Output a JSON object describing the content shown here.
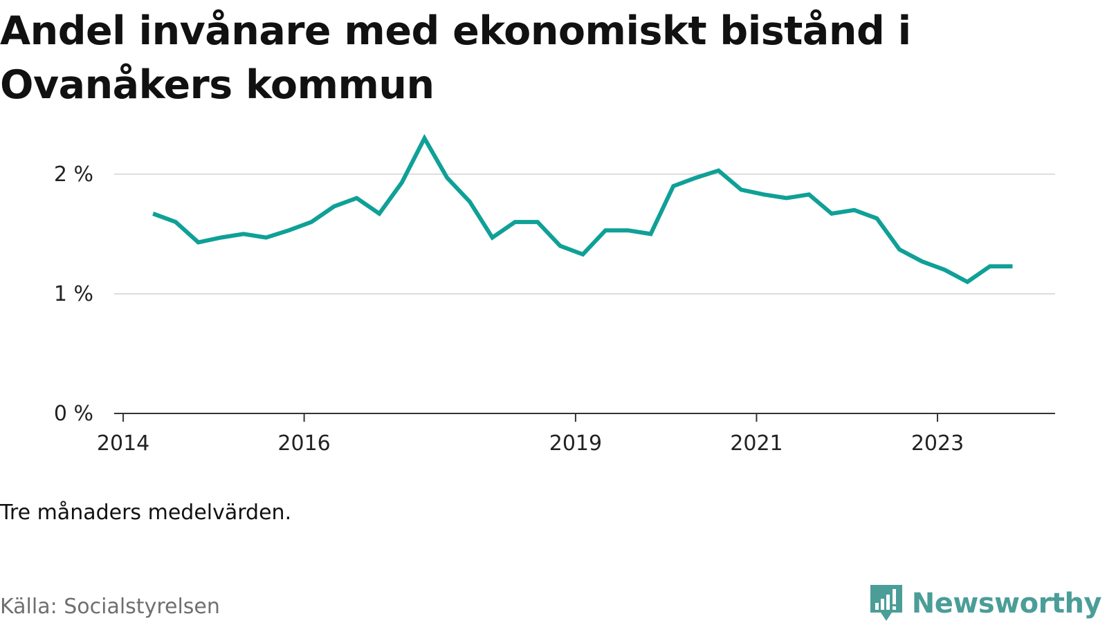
{
  "title": "Andel invånare med ekonomiskt bistånd i Ovanåkers kommun",
  "note": "Tre månaders medelvärden.",
  "source": "Källa: Socialstyrelsen",
  "brand": {
    "name": "Newsworthy",
    "color": "#4b9d98",
    "logo_icon": "newsworthy-speech-bubble-chart-icon"
  },
  "chart_data": {
    "type": "line",
    "line_color": "#0fa097",
    "grid": true,
    "ylim": [
      0,
      2.3
    ],
    "y_ticks": [
      {
        "value": 0,
        "label": "0 %"
      },
      {
        "value": 1,
        "label": "1 %"
      },
      {
        "value": 2,
        "label": "2 %"
      }
    ],
    "x_ticks": [
      {
        "value": 2014.0,
        "label": "2014"
      },
      {
        "value": 2016.0,
        "label": "2016"
      },
      {
        "value": 2019.0,
        "label": "2019"
      },
      {
        "value": 2021.0,
        "label": "2021"
      },
      {
        "value": 2023.0,
        "label": "2023"
      }
    ],
    "xlim": [
      2013.9,
      2024.3
    ],
    "series": [
      {
        "x": [
          2014.33,
          2014.58,
          2014.83,
          2015.08,
          2015.33,
          2015.58,
          2015.83,
          2016.08,
          2016.33,
          2016.58,
          2016.83,
          2017.08,
          2017.33,
          2017.58,
          2017.83,
          2018.08,
          2018.33,
          2018.58,
          2018.83,
          2019.08,
          2019.33,
          2019.58,
          2019.83,
          2020.08,
          2020.33,
          2020.58,
          2020.83,
          2021.08,
          2021.33,
          2021.58,
          2021.83,
          2022.08,
          2022.33,
          2022.58,
          2022.83,
          2023.08,
          2023.33,
          2023.58,
          2023.83
        ],
        "values": [
          1.67,
          1.6,
          1.43,
          1.47,
          1.5,
          1.47,
          1.53,
          1.6,
          1.73,
          1.8,
          1.67,
          1.93,
          2.3,
          1.97,
          1.77,
          1.47,
          1.6,
          1.6,
          1.4,
          1.33,
          1.53,
          1.53,
          1.5,
          1.9,
          1.97,
          2.03,
          1.87,
          1.83,
          1.8,
          1.83,
          1.67,
          1.7,
          1.63,
          1.37,
          1.27,
          1.2,
          1.1,
          1.23,
          1.23
        ]
      }
    ]
  }
}
